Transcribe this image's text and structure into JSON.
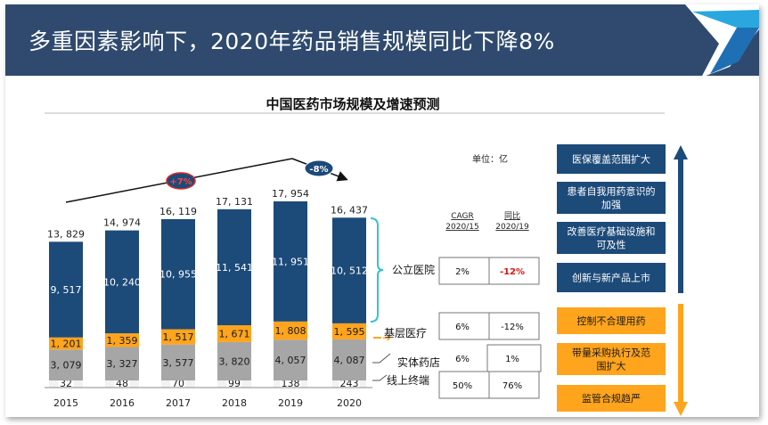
{
  "page": {
    "title": "多重因素影响下，2020年药品销售规模同比下降8%"
  },
  "chart_data": {
    "type": "bar",
    "stacked": true,
    "title": "中国医药市场规模及增速预测",
    "categories": [
      "2015",
      "2016",
      "2017",
      "2018",
      "2019",
      "2020"
    ],
    "series": [
      {
        "name": "线上终端",
        "values": [
          32,
          48,
          70,
          99,
          138,
          243
        ],
        "color": "#f2f2f2"
      },
      {
        "name": "实体药店",
        "values": [
          3079,
          3327,
          3577,
          3820,
          4057,
          4087
        ],
        "color": "#a6a6a6"
      },
      {
        "name": "基层医疗",
        "values": [
          1201,
          1359,
          1517,
          1671,
          1808,
          1595
        ],
        "color": "#ffa41c"
      },
      {
        "name": "公立医院",
        "values": [
          9517,
          10240,
          10955,
          11541,
          11951,
          10512
        ],
        "color": "#1c4a79"
      }
    ],
    "totals": [
      13829,
      14974,
      16119,
      17131,
      17954,
      16437
    ],
    "value_labels": {
      "线上终端": [
        "32",
        "48",
        "70",
        "99",
        "138",
        "243"
      ],
      "实体药店": [
        "3, 079",
        "3, 327",
        "3, 577",
        "3, 820",
        "4, 057",
        "4, 087"
      ],
      "基层医疗": [
        "1, 201",
        "1, 359",
        "1, 517",
        "1, 671",
        "1, 808",
        "1, 595"
      ],
      "公立医院": [
        "9, 517",
        "10, 240",
        "10, 955",
        "11, 541",
        "11, 951",
        "10, 512"
      ],
      "totals": [
        "13, 829",
        "14, 974",
        "16, 119",
        "17, 131",
        "17, 954",
        "16, 437"
      ]
    },
    "trend_badges": [
      "+7%",
      "-8%"
    ],
    "ylim": [
      0,
      19500
    ],
    "unit_label": "单位：亿",
    "growth_table": {
      "headers": [
        "CAGR\n2020/15",
        "同比\n2020/19"
      ],
      "rows": [
        {
          "segment": "公立医院",
          "cagr": "2%",
          "yoy": "-12%",
          "highlight": true
        },
        {
          "segment": "基层医疗",
          "cagr": "6%",
          "yoy": "-12%",
          "highlight": false
        },
        {
          "segment": "实体药店",
          "cagr": "6%",
          "yoy": "1%",
          "highlight": false
        },
        {
          "segment": "线上终端",
          "cagr": "50%",
          "yoy": "76%",
          "highlight": false
        }
      ]
    }
  },
  "drivers": {
    "up": [
      "医保覆盖范围扩大",
      "患者自我用药意识的加强",
      "改善医疗基础设施和可及性",
      "创新与新产品上市"
    ],
    "down": [
      "控制不合理用药",
      "带量采购执行及范围扩大",
      "监管合规趋严"
    ],
    "up_color": "#1c4a79",
    "down_color": "#ffa41c"
  }
}
